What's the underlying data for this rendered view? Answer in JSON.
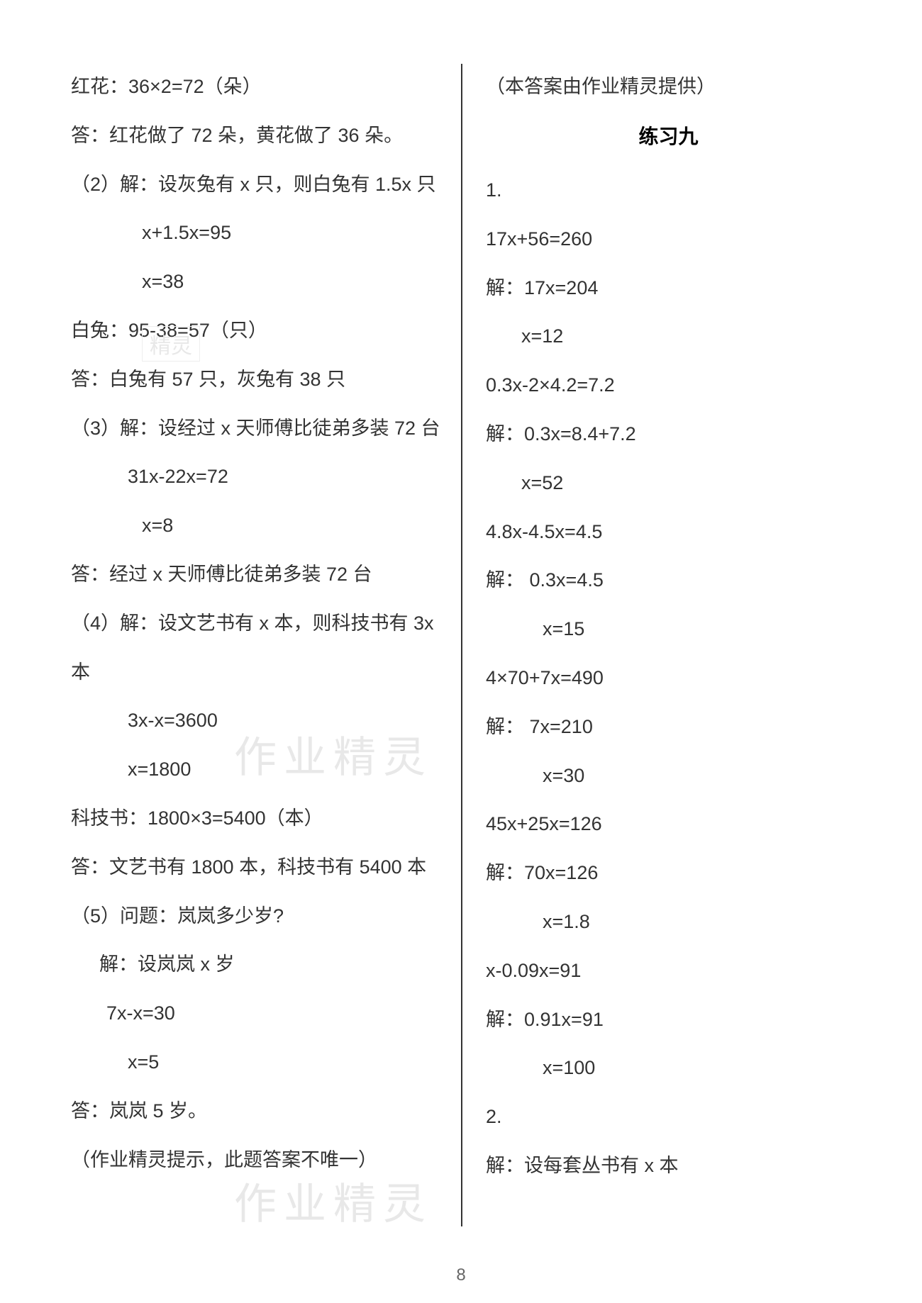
{
  "page_number": "8",
  "watermarks": {
    "w1": "精灵",
    "w2": "作业精灵",
    "w3": "作业精灵"
  },
  "left_column": {
    "lines": [
      {
        "text": "红花：36×2=72（朵）",
        "indent": ""
      },
      {
        "text": "答：红花做了 72 朵，黄花做了 36 朵。",
        "indent": ""
      },
      {
        "text": "（2）解：设灰兔有 x 只，则白兔有 1.5x 只",
        "indent": ""
      },
      {
        "text": "x+1.5x=95",
        "indent": "indent-3"
      },
      {
        "text": "x=38",
        "indent": "indent-3"
      },
      {
        "text": "白兔：95-38=57（只）",
        "indent": ""
      },
      {
        "text": "答：白兔有 57 只，灰兔有 38 只",
        "indent": ""
      },
      {
        "text": "（3）解：设经过 x 天师傅比徒弟多装 72 台",
        "indent": ""
      },
      {
        "text": "31x-22x=72",
        "indent": "indent-2"
      },
      {
        "text": "x=8",
        "indent": "indent-3"
      },
      {
        "text": "答：经过 x 天师傅比徒弟多装 72 台",
        "indent": ""
      },
      {
        "text": "（4）解：设文艺书有 x 本，则科技书有 3x",
        "indent": ""
      },
      {
        "text": "本",
        "indent": ""
      },
      {
        "text": "3x-x=3600",
        "indent": "indent-2"
      },
      {
        "text": "x=1800",
        "indent": "indent-2"
      },
      {
        "text": "科技书：1800×3=5400（本）",
        "indent": ""
      },
      {
        "text": "答：文艺书有 1800 本，科技书有 5400 本",
        "indent": ""
      },
      {
        "text": "（5）问题：岚岚多少岁?",
        "indent": ""
      },
      {
        "text": "解：设岚岚 x 岁",
        "indent": "indent-4"
      },
      {
        "text": "7x-x=30",
        "indent": "indent-1"
      },
      {
        "text": "x=5",
        "indent": "indent-2"
      },
      {
        "text": "答：岚岚 5 岁。",
        "indent": ""
      },
      {
        "text": "（作业精灵提示，此题答案不唯一）",
        "indent": ""
      }
    ]
  },
  "right_column": {
    "provider": "（本答案由作业精灵提供）",
    "section_title": "练习九",
    "lines": [
      {
        "text": "1.",
        "indent": ""
      },
      {
        "text": "17x+56=260",
        "indent": ""
      },
      {
        "text": "解：17x=204",
        "indent": ""
      },
      {
        "text": "x=12",
        "indent": "indent-1"
      },
      {
        "text": "0.3x-2×4.2=7.2",
        "indent": ""
      },
      {
        "text": "解：0.3x=8.4+7.2",
        "indent": ""
      },
      {
        "text": "x=52",
        "indent": "indent-1"
      },
      {
        "text": "4.8x-4.5x=4.5",
        "indent": ""
      },
      {
        "text": "解：  0.3x=4.5",
        "indent": ""
      },
      {
        "text": "x=15",
        "indent": "indent-2"
      },
      {
        "text": "4×70+7x=490",
        "indent": ""
      },
      {
        "text": "解：    7x=210",
        "indent": ""
      },
      {
        "text": "x=30",
        "indent": "indent-2"
      },
      {
        "text": "45x+25x=126",
        "indent": ""
      },
      {
        "text": "解：70x=126",
        "indent": ""
      },
      {
        "text": "x=1.8",
        "indent": "indent-2"
      },
      {
        "text": "x-0.09x=91",
        "indent": ""
      },
      {
        "text": "解：0.91x=91",
        "indent": ""
      },
      {
        "text": "x=100",
        "indent": "indent-2"
      },
      {
        "text": "2.",
        "indent": ""
      },
      {
        "text": "解：设每套丛书有 x 本",
        "indent": ""
      }
    ]
  }
}
